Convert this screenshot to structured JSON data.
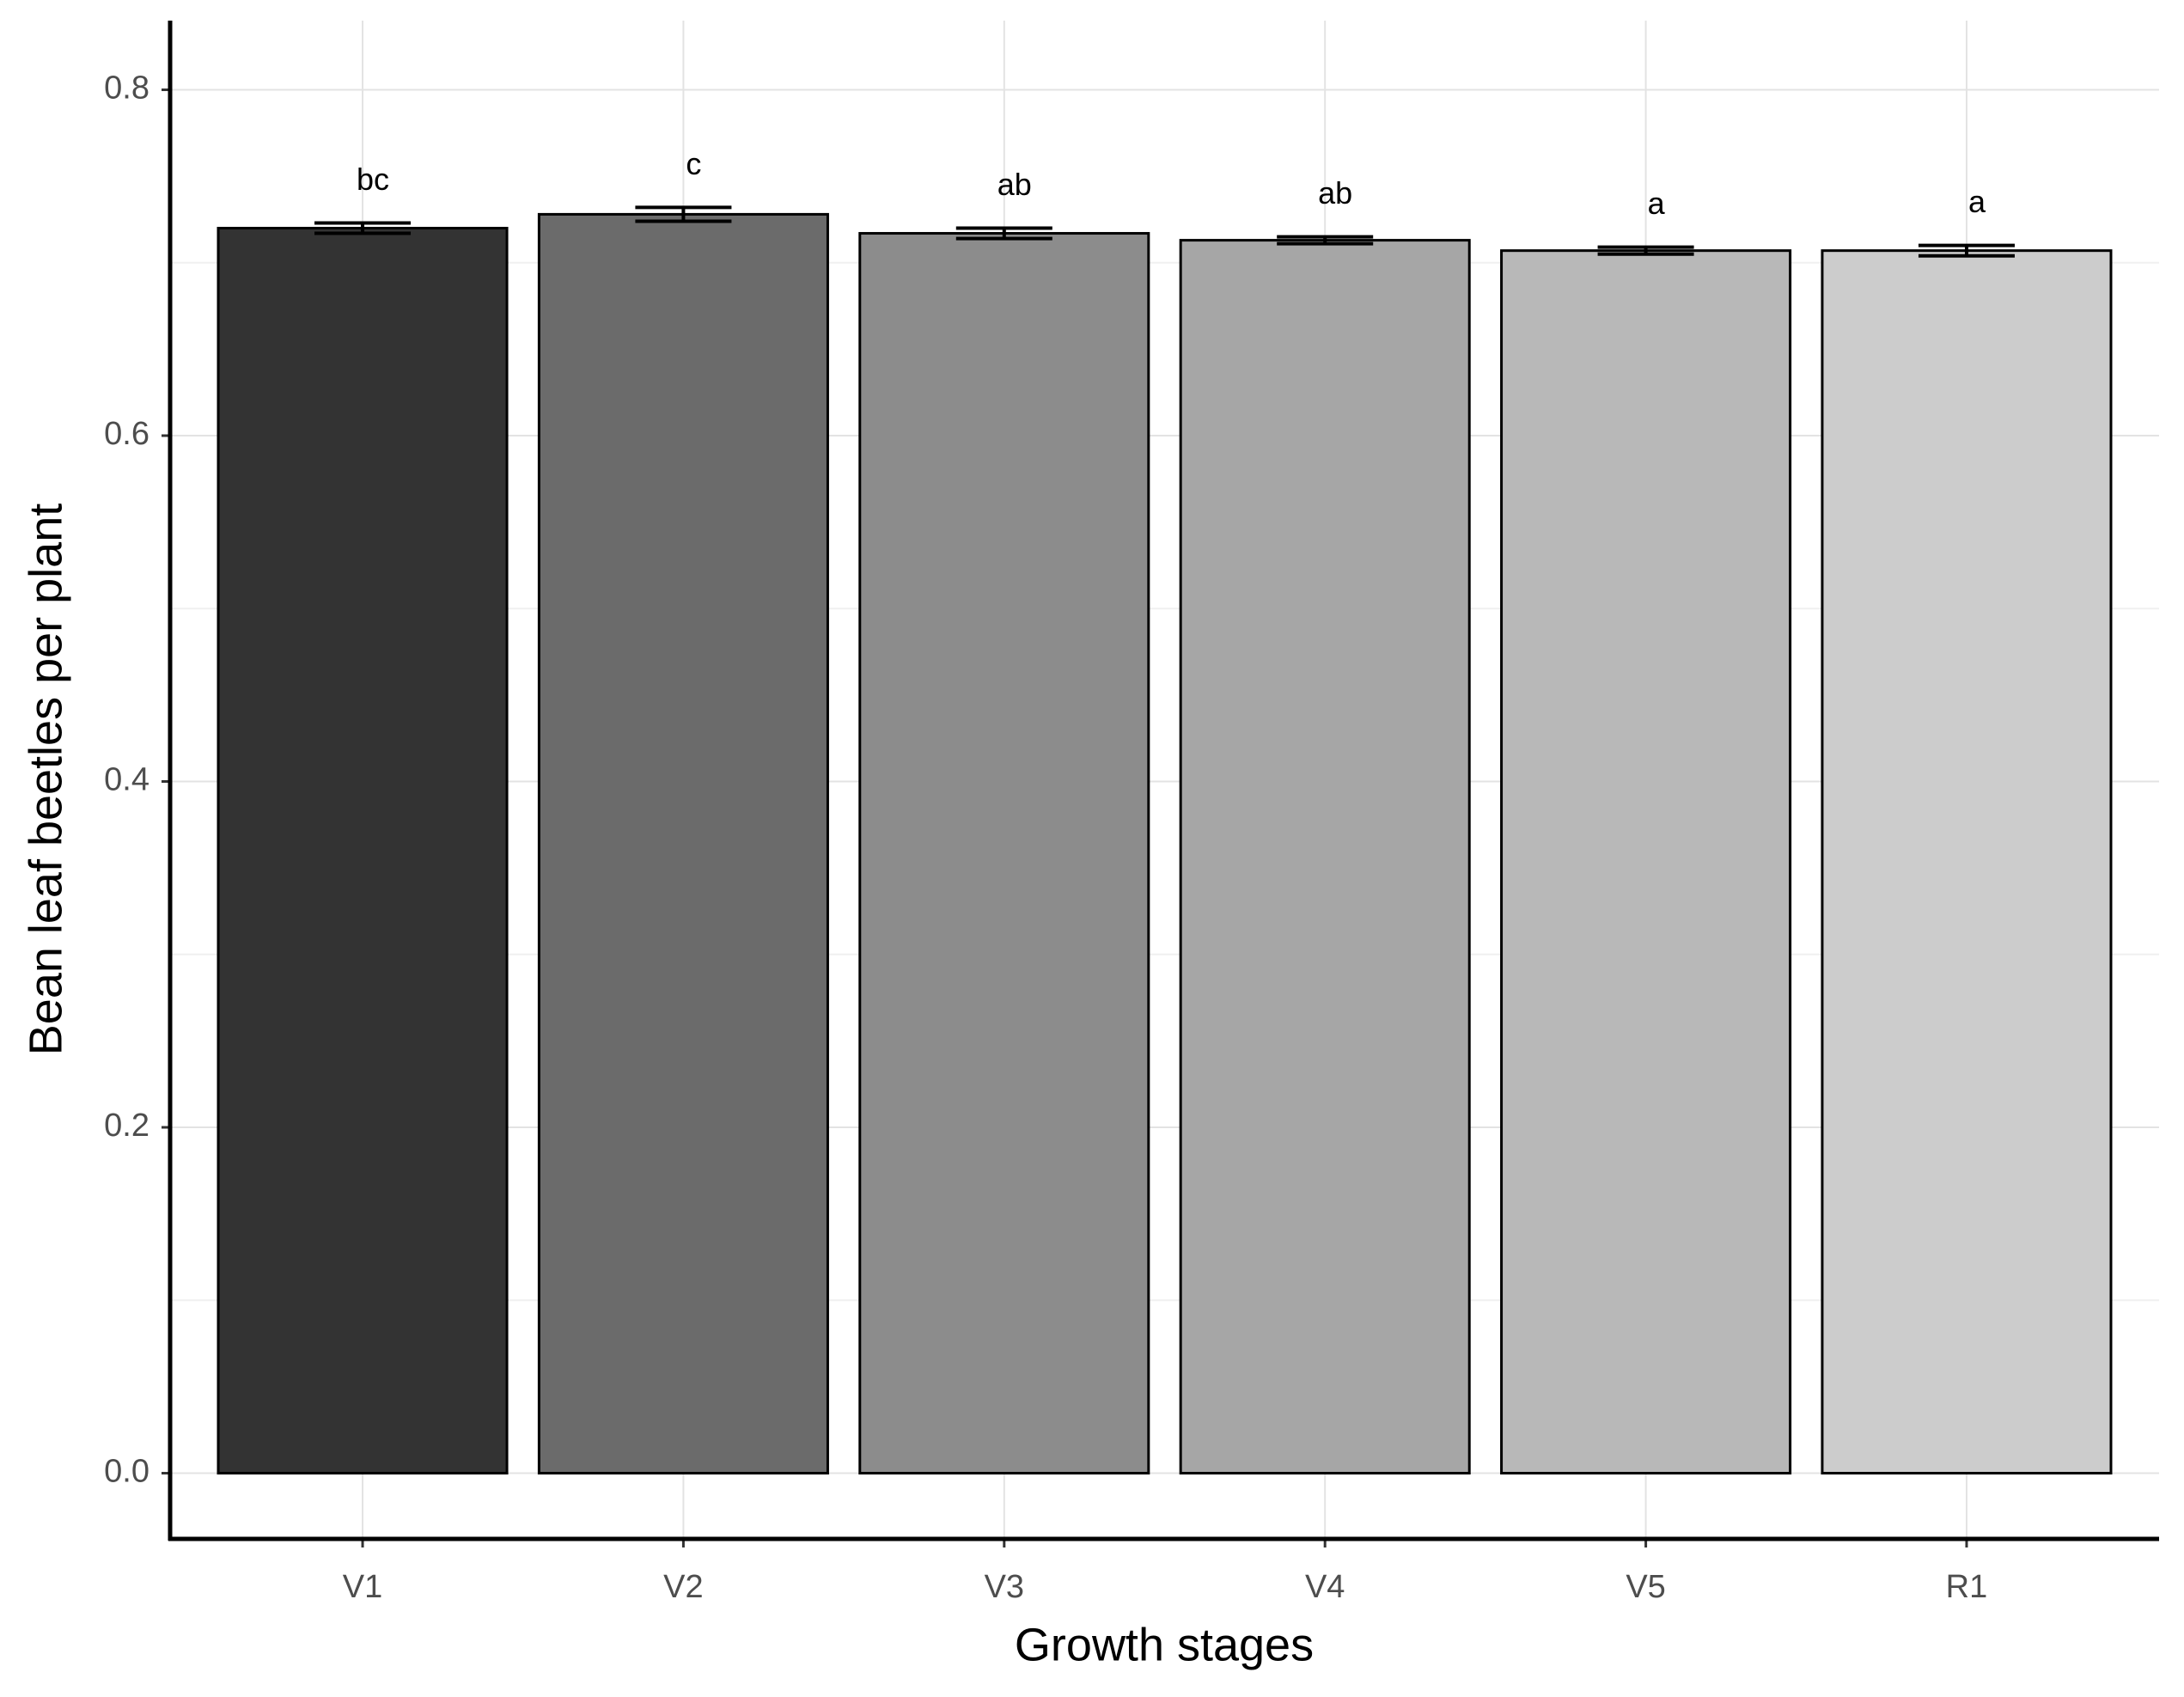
{
  "chart_data": {
    "type": "bar",
    "x_label": "Growth stages",
    "y_label": "Bean leaf beetles per plant",
    "categories": [
      "V1",
      "V2",
      "V3",
      "V4",
      "V5",
      "R1"
    ],
    "values": [
      0.72,
      0.728,
      0.717,
      0.713,
      0.707,
      0.707
    ],
    "errors": [
      0.003,
      0.004,
      0.003,
      0.002,
      0.002,
      0.003
    ],
    "significance_letters": [
      "bc",
      "c",
      "ab",
      "ab",
      "a",
      "a"
    ],
    "colors": [
      "#333333",
      "#6b6b6b",
      "#8c8c8c",
      "#a6a6a6",
      "#b8b8b8",
      "#cccccc"
    ],
    "ylim": [
      -0.038,
      0.84
    ],
    "yticks": [
      {
        "value": 0,
        "label": "0.0"
      },
      0.2,
      0.4,
      0.6,
      0.8
    ],
    "y_minor_ticks": [
      0.1,
      0.3,
      0.5,
      0.7
    ],
    "grid": true
  }
}
